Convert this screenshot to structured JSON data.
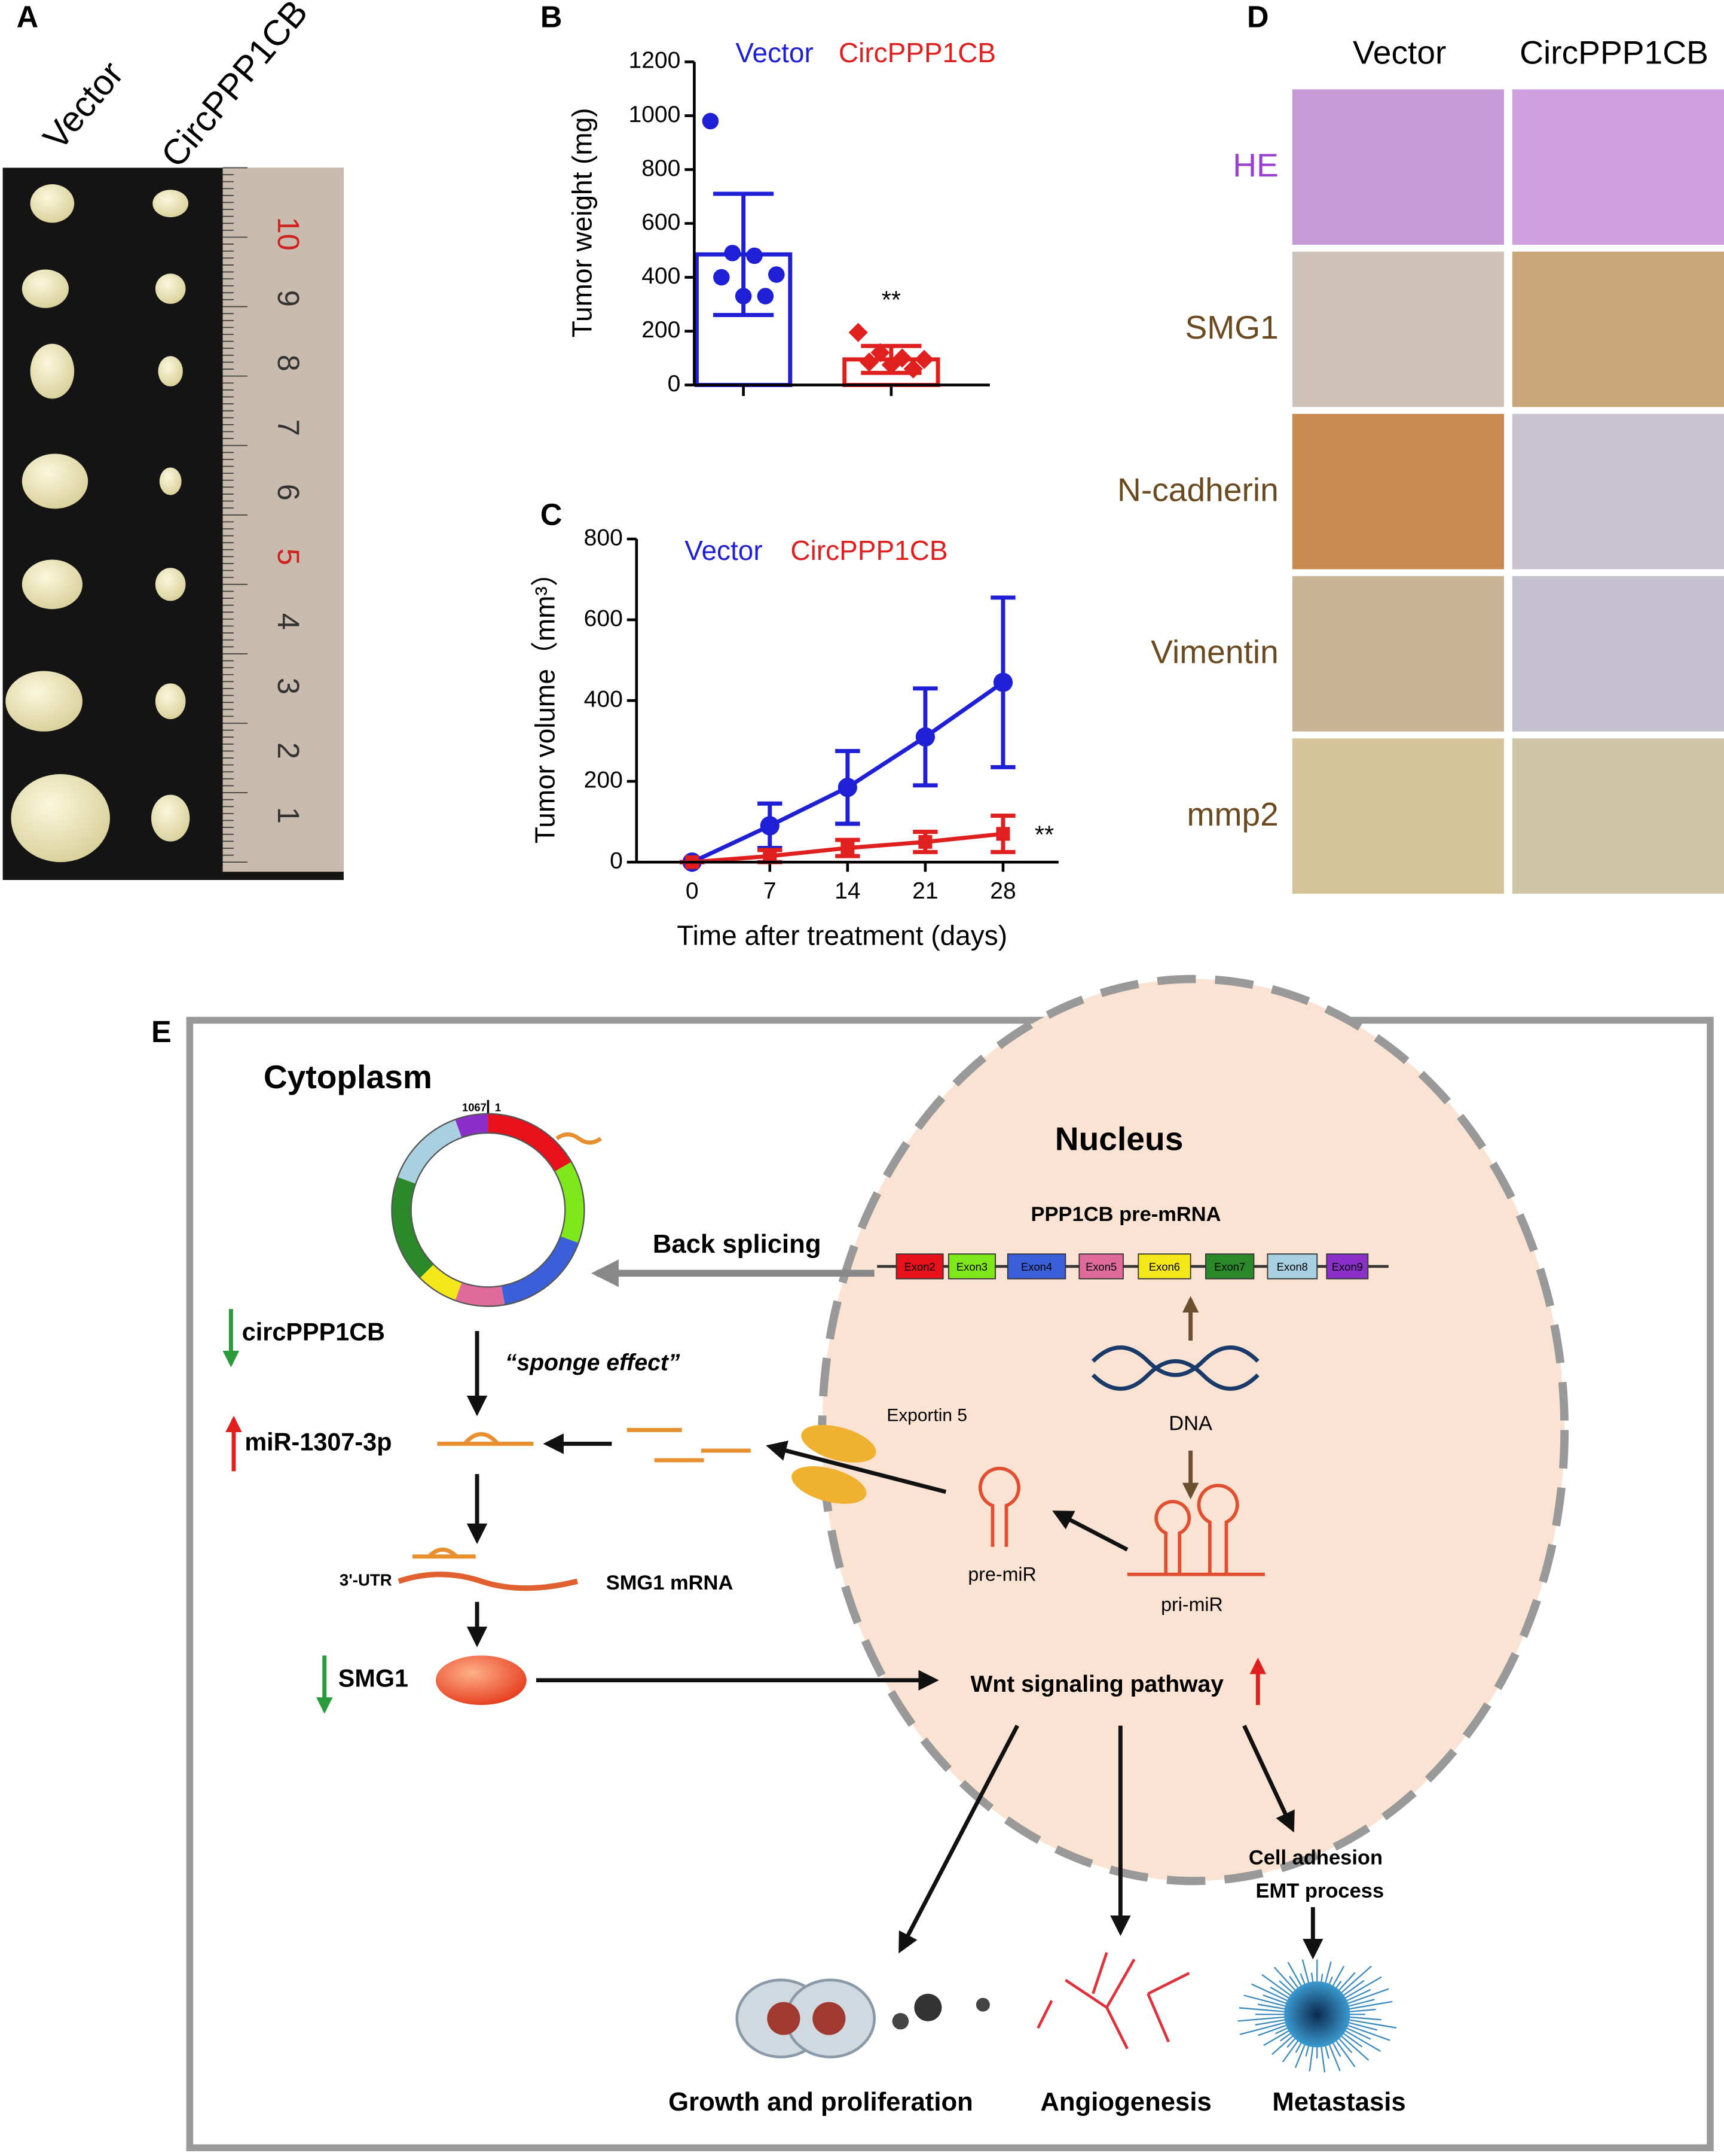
{
  "panel_labels": [
    "A",
    "B",
    "C",
    "D",
    "E"
  ],
  "panel_a": {
    "columns": [
      "Vector",
      "CircPPP1CB"
    ],
    "ruler_labels": [
      "10",
      "9",
      "8",
      "7",
      "6",
      "5",
      "4",
      "3",
      "2",
      "1"
    ]
  },
  "chart_data": [
    {
      "type": "bar",
      "y_label": "Tumor weight (mg)",
      "categories": [
        null,
        null
      ],
      "legend": [
        "Vector",
        "CircPPP1CB"
      ],
      "colors": [
        "#1f1fd6",
        "#e01f1f"
      ],
      "values": [
        485,
        95
      ],
      "errors": [
        225,
        50
      ],
      "points": [
        [
          980,
          490,
          480,
          410,
          400,
          330,
          330
        ],
        [
          195,
          120,
          100,
          95,
          85,
          75,
          60
        ]
      ],
      "annotation": "**",
      "ylim": [
        0,
        1200
      ],
      "yticks": [
        0,
        200,
        400,
        600,
        800,
        1000,
        1200
      ]
    },
    {
      "type": "line",
      "x_label": "Time after treatment (days)",
      "y_label": "Tumor volume（mm³）",
      "x": [
        0,
        7,
        14,
        21,
        28
      ],
      "xlim": [
        -5,
        33
      ],
      "xticks": [
        0,
        7,
        14,
        21,
        28
      ],
      "ylim": [
        0,
        800
      ],
      "yticks": [
        0,
        200,
        400,
        600,
        800
      ],
      "series": [
        {
          "name": "Vector",
          "color": "#1f1fd6",
          "values": [
            0,
            90,
            185,
            310,
            445
          ],
          "errors": [
            0,
            55,
            90,
            120,
            210
          ]
        },
        {
          "name": "CircPPP1CB",
          "color": "#e01f1f",
          "values": [
            0,
            15,
            35,
            50,
            70
          ],
          "errors": [
            0,
            15,
            20,
            25,
            45
          ]
        }
      ],
      "annotation": "**"
    }
  ],
  "panel_d": {
    "columns": [
      "Vector",
      "CircPPP1CB"
    ],
    "rows": [
      "HE",
      "SMG1",
      "N-cadherin",
      "Vimentin",
      "mmp2"
    ]
  },
  "panel_e": {
    "cytoplasm": "Cytoplasm",
    "nucleus": "Nucleus",
    "ring_start": "1067",
    "ring_end": "1",
    "pre_mrna": "PPP1CB pre-mRNA",
    "exons": [
      "Exon2",
      "Exon3",
      "Exon4",
      "Exon5",
      "Exon6",
      "Exon7",
      "Exon8",
      "Exon9"
    ],
    "back_splicing": "Back splicing",
    "circ": "circPPP1CB",
    "sponge": "“sponge effect”",
    "mir": "miR-1307-3p",
    "exportin": "Exportin 5",
    "dna": "DNA",
    "pre_mir": "pre-miR",
    "pri_mir": "pri-miR",
    "utr": "3'-UTR",
    "smg1_mrna": "SMG1 mRNA",
    "smg1": "SMG1",
    "wnt": "Wnt signaling pathway",
    "cell_adhesion": "Cell adhesion",
    "emt": "EMT process",
    "growth": "Growth and proliferation",
    "angiogenesis": "Angiogenesis",
    "metastasis": "Metastasis"
  }
}
